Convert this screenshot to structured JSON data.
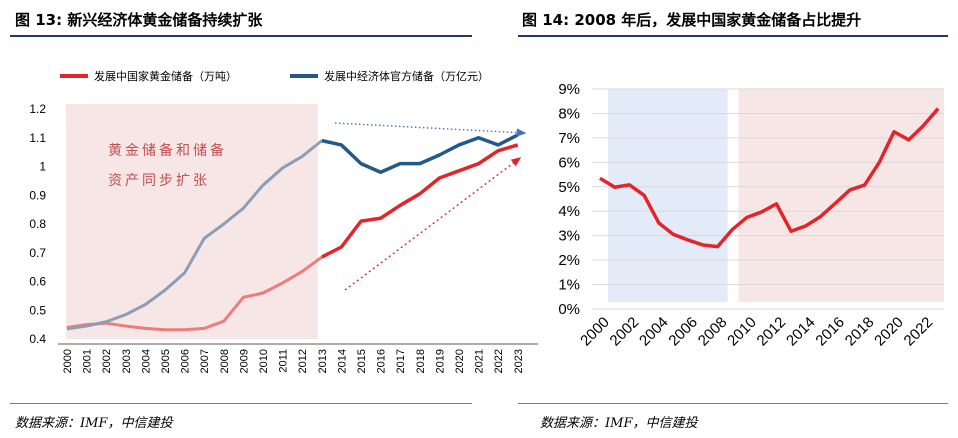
{
  "left": {
    "title": "图 13: 新兴经济体黄金储备持续扩张",
    "source": "数据来源：IMF，中信建投",
    "annotation_lines": [
      "黄金储备和储备",
      "资产同步扩张"
    ],
    "legend": [
      "发展中国家黄金储备（万吨）",
      "发展中经济体官方储备（万亿元）"
    ]
  },
  "right": {
    "title": "图 14: 2008 年后，发展中国家黄金储备占比提升",
    "source": "数据来源：IMF，中信建投"
  },
  "colors": {
    "red": "#e3242b",
    "blue": "#1f5a8a",
    "grey": "#8d9db4",
    "pink_bg": "#f7e6e6",
    "blue_bg": "#e3ebf8",
    "title_rule": "#1f3864"
  },
  "chart_data": [
    {
      "type": "line",
      "title": "图 13: 新兴经济体黄金储备持续扩张",
      "x": [
        "2000",
        "2001",
        "2002",
        "2003",
        "2004",
        "2005",
        "2006",
        "2007",
        "2008",
        "2009",
        "2010",
        "2011",
        "2012",
        "2013",
        "2014",
        "2015",
        "2016",
        "2017",
        "2018",
        "2019",
        "2020",
        "2021",
        "2022",
        "2023"
      ],
      "ylim": [
        0.4,
        1.2
      ],
      "yticks": [
        0.4,
        0.5,
        0.6,
        0.7,
        0.8,
        0.9,
        1,
        1.1,
        1.2
      ],
      "series": [
        {
          "name": "发展中国家黄金储备（万吨）",
          "color": "#e3242b",
          "values": [
            0.44,
            0.45,
            0.455,
            0.445,
            0.437,
            0.432,
            0.432,
            0.437,
            0.462,
            0.545,
            0.56,
            0.595,
            0.635,
            0.685,
            0.72,
            0.81,
            0.82,
            0.865,
            0.905,
            0.96,
            0.985,
            1.01,
            1.055,
            1.075
          ]
        },
        {
          "name": "发展中经济体官方储备（万亿元）",
          "color": "#1f5a8a",
          "values": [
            0.435,
            0.445,
            0.46,
            0.485,
            0.52,
            0.57,
            0.63,
            0.75,
            0.8,
            0.855,
            0.935,
            0.995,
            1.035,
            1.09,
            1.075,
            1.01,
            0.98,
            1.01,
            1.01,
            1.04,
            1.075,
            1.1,
            1.075,
            1.11
          ]
        }
      ],
      "grey_segment_end": "2013",
      "shaded_region": [
        "2000",
        "2013"
      ],
      "legend_position": "top",
      "grid": false
    },
    {
      "type": "line",
      "title": "图 14: 2008 年后，发展中国家黄金储备占比提升",
      "x": [
        "2000",
        "2001",
        "2002",
        "2003",
        "2004",
        "2005",
        "2006",
        "2007",
        "2008",
        "2009",
        "2010",
        "2011",
        "2012",
        "2013",
        "2014",
        "2015",
        "2016",
        "2017",
        "2018",
        "2019",
        "2020",
        "2021",
        "2022",
        "2023"
      ],
      "xtick_labels": [
        "2000",
        "2002",
        "2004",
        "2006",
        "2008",
        "2010",
        "2012",
        "2014",
        "2016",
        "2018",
        "2020",
        "2022"
      ],
      "ylim": [
        0,
        9
      ],
      "ytick_labels": [
        "0%",
        "1%",
        "2%",
        "3%",
        "4%",
        "5%",
        "6%",
        "7%",
        "8%",
        "9%"
      ],
      "series": [
        {
          "color": "#e3242b",
          "values": [
            5.35,
            4.98,
            5.08,
            4.65,
            3.52,
            3.05,
            2.82,
            2.62,
            2.55,
            3.25,
            3.75,
            3.97,
            4.3,
            3.18,
            3.4,
            3.78,
            4.32,
            4.87,
            5.07,
            6.0,
            7.25,
            6.92,
            7.5,
            8.2
          ]
        }
      ],
      "shaded_regions": [
        {
          "from": "2000",
          "to": "2008",
          "color": "#e3ebf8"
        },
        {
          "from": "2009",
          "to": "2023",
          "color": "#f7e6e6"
        }
      ],
      "grid": true
    }
  ]
}
